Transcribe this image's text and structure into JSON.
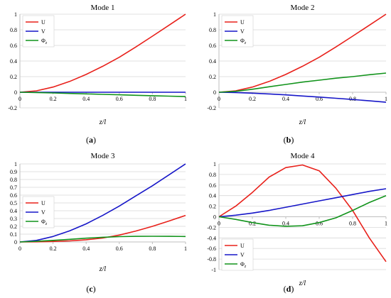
{
  "figure": {
    "panel_labels": [
      {
        "open": "(",
        "letter": "a",
        "close": ")"
      },
      {
        "open": "(",
        "letter": "b",
        "close": ")"
      },
      {
        "open": "(",
        "letter": "c",
        "close": ")"
      },
      {
        "open": "(",
        "letter": "d",
        "close": ")"
      }
    ]
  },
  "colors": {
    "U": "#e8201a",
    "V": "#1616c8",
    "Phi": "#11931b",
    "grid": "#d9d9d9",
    "axis": "#bfbfbf"
  },
  "chart_data": [
    {
      "type": "line",
      "title": "Mode 1",
      "xlabel": "z/l",
      "xlim": [
        0,
        1
      ],
      "ylim": [
        -0.2,
        1
      ],
      "x_ticks": [
        0,
        0.2,
        0.4,
        0.6,
        0.8,
        1
      ],
      "y_ticks": [
        -0.2,
        0,
        0.2,
        0.4,
        0.6,
        0.8,
        1
      ],
      "legend": {
        "position": "top-left",
        "entries": [
          "U",
          "V",
          "Φz"
        ]
      },
      "x": [
        0,
        0.1,
        0.2,
        0.3,
        0.4,
        0.5,
        0.6,
        0.7,
        0.8,
        0.9,
        1.0
      ],
      "series": [
        {
          "name": "U",
          "color_key": "U",
          "values": [
            0,
            0.018,
            0.066,
            0.138,
            0.228,
            0.333,
            0.448,
            0.58,
            0.718,
            0.858,
            1.0
          ]
        },
        {
          "name": "V",
          "color_key": "V",
          "values": [
            0,
            0,
            0,
            0,
            0,
            0,
            0,
            0,
            0,
            0,
            0
          ]
        },
        {
          "name": "Φz",
          "color_key": "Phi",
          "values": [
            0,
            -0.004,
            -0.009,
            -0.015,
            -0.021,
            -0.027,
            -0.033,
            -0.039,
            -0.045,
            -0.05,
            -0.055
          ]
        }
      ]
    },
    {
      "type": "line",
      "title": "Mode 2",
      "xlabel": "z/l",
      "xlim": [
        0,
        1
      ],
      "ylim": [
        -0.2,
        1
      ],
      "x_ticks": [
        0,
        0.2,
        0.4,
        0.6,
        0.8,
        1
      ],
      "y_ticks": [
        -0.2,
        0,
        0.2,
        0.4,
        0.6,
        0.8,
        1
      ],
      "legend": {
        "position": "top-left",
        "entries": [
          "U",
          "V",
          "Φz"
        ]
      },
      "x": [
        0,
        0.1,
        0.2,
        0.3,
        0.4,
        0.5,
        0.6,
        0.7,
        0.8,
        0.9,
        1.0
      ],
      "series": [
        {
          "name": "U",
          "color_key": "U",
          "values": [
            0,
            0.018,
            0.066,
            0.138,
            0.228,
            0.333,
            0.448,
            0.58,
            0.718,
            0.858,
            1.0
          ]
        },
        {
          "name": "V",
          "color_key": "V",
          "values": [
            0,
            -0.004,
            -0.012,
            -0.022,
            -0.034,
            -0.048,
            -0.062,
            -0.077,
            -0.093,
            -0.11,
            -0.128
          ]
        },
        {
          "name": "Φz",
          "color_key": "Phi",
          "values": [
            0,
            0.012,
            0.038,
            0.07,
            0.1,
            0.13,
            0.155,
            0.18,
            0.2,
            0.225,
            0.245
          ]
        }
      ]
    },
    {
      "type": "line",
      "title": "Mode 3",
      "xlabel": "z/l",
      "xlim": [
        0,
        1
      ],
      "ylim": [
        0,
        1
      ],
      "x_ticks": [
        0,
        0.2,
        0.4,
        0.6,
        0.8,
        1
      ],
      "y_ticks": [
        0,
        0.1,
        0.2,
        0.3,
        0.4,
        0.5,
        0.6,
        0.7,
        0.8,
        0.9,
        1
      ],
      "legend": {
        "position": "left",
        "entries": [
          "U",
          "V",
          "Φz"
        ]
      },
      "x": [
        0,
        0.1,
        0.2,
        0.3,
        0.4,
        0.5,
        0.6,
        0.7,
        0.8,
        0.9,
        1.0
      ],
      "series": [
        {
          "name": "U",
          "color_key": "U",
          "values": [
            0,
            0.002,
            0.006,
            0.014,
            0.028,
            0.05,
            0.088,
            0.14,
            0.2,
            0.268,
            0.34
          ]
        },
        {
          "name": "V",
          "color_key": "V",
          "values": [
            0,
            0.02,
            0.07,
            0.142,
            0.232,
            0.34,
            0.46,
            0.59,
            0.72,
            0.86,
            1.0
          ]
        },
        {
          "name": "Φz",
          "color_key": "Phi",
          "values": [
            0,
            0.008,
            0.02,
            0.034,
            0.048,
            0.06,
            0.068,
            0.072,
            0.073,
            0.072,
            0.07
          ]
        }
      ]
    },
    {
      "type": "line",
      "title": "Mode 4",
      "xlabel": "z/l",
      "xlim": [
        0,
        1
      ],
      "ylim": [
        -1,
        1
      ],
      "x_ticks": [
        0,
        0.2,
        0.4,
        0.6,
        0.8,
        1
      ],
      "y_ticks": [
        -1,
        -0.8,
        -0.6,
        -0.4,
        -0.2,
        0,
        0.2,
        0.4,
        0.6,
        0.8,
        1
      ],
      "legend": {
        "position": "bottom-left",
        "entries": [
          "U",
          "V",
          "Φz"
        ]
      },
      "x": [
        0,
        0.1,
        0.2,
        0.3,
        0.4,
        0.5,
        0.6,
        0.7,
        0.8,
        0.9,
        1.0
      ],
      "series": [
        {
          "name": "U",
          "color_key": "U",
          "values": [
            0,
            0.2,
            0.46,
            0.75,
            0.93,
            0.98,
            0.87,
            0.54,
            0.12,
            -0.4,
            -0.85
          ]
        },
        {
          "name": "V",
          "color_key": "V",
          "values": [
            0,
            0.03,
            0.07,
            0.12,
            0.18,
            0.24,
            0.3,
            0.36,
            0.42,
            0.48,
            0.53
          ]
        },
        {
          "name": "Φz",
          "color_key": "Phi",
          "values": [
            0,
            -0.05,
            -0.11,
            -0.16,
            -0.18,
            -0.17,
            -0.11,
            -0.02,
            0.12,
            0.27,
            0.4
          ]
        }
      ]
    }
  ]
}
